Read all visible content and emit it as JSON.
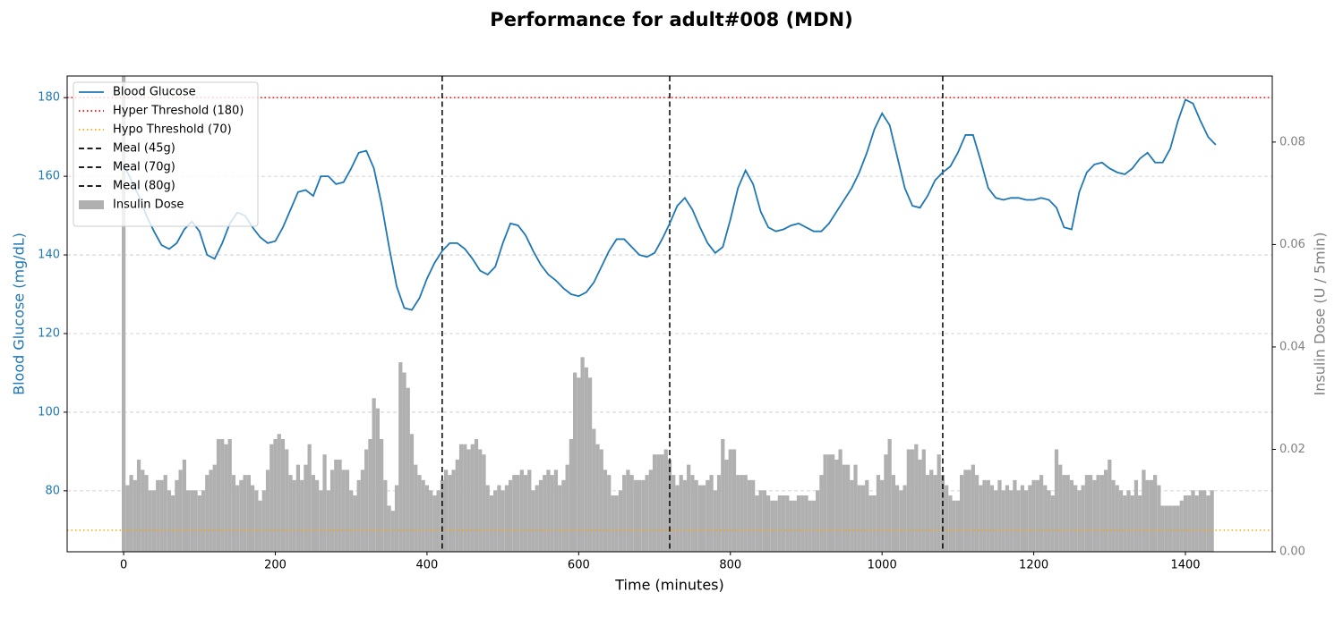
{
  "chart_data": {
    "type": "line",
    "title": "Performance for adult#008 (MDN)",
    "xlabel": "Time (minutes)",
    "ylabel": "Blood Glucose (mg/dL)",
    "y2label": "Insulin Dose (U / 5min)",
    "xlim": [
      -74.5,
      1514.5
    ],
    "ylim": [
      64.5,
      185.5
    ],
    "y2lim": [
      0,
      0.0929
    ],
    "xticks": [
      0,
      200,
      400,
      600,
      800,
      1000,
      1200,
      1400
    ],
    "yticks": [
      80,
      100,
      120,
      140,
      160,
      180
    ],
    "y2ticks": [
      {
        "value": 0,
        "label": "0.00"
      },
      0.02,
      0.04,
      0.06,
      0.08
    ],
    "grid": true,
    "legend": "upper left",
    "series": [
      {
        "name": "Blood Glucose",
        "type": "line",
        "color": "#1f77b4",
        "x": [
          0,
          10,
          20,
          30,
          40,
          50,
          60,
          70,
          80,
          90,
          100,
          110,
          120,
          130,
          140,
          150,
          160,
          170,
          180,
          190,
          200,
          210,
          220,
          230,
          240,
          250,
          260,
          270,
          280,
          290,
          300,
          310,
          320,
          330,
          340,
          350,
          360,
          370,
          380,
          390,
          400,
          410,
          420,
          430,
          440,
          450,
          460,
          470,
          480,
          490,
          500,
          510,
          520,
          530,
          540,
          550,
          560,
          570,
          580,
          590,
          600,
          610,
          620,
          630,
          640,
          650,
          660,
          670,
          680,
          690,
          700,
          710,
          720,
          730,
          740,
          750,
          760,
          770,
          780,
          790,
          800,
          810,
          820,
          830,
          840,
          850,
          860,
          870,
          880,
          890,
          900,
          910,
          920,
          930,
          940,
          950,
          960,
          970,
          980,
          990,
          1000,
          1010,
          1020,
          1030,
          1040,
          1050,
          1060,
          1070,
          1080,
          1090,
          1100,
          1110,
          1120,
          1130,
          1140,
          1150,
          1160,
          1170,
          1180,
          1190,
          1200,
          1210,
          1220,
          1230,
          1240,
          1250,
          1260,
          1270,
          1280,
          1290,
          1300,
          1310,
          1320,
          1330,
          1340,
          1350,
          1360,
          1370,
          1380,
          1390,
          1400,
          1410,
          1420,
          1430,
          1440
        ],
        "values": [
          163,
          159,
          155,
          150,
          146,
          142.5,
          141.5,
          143,
          146.5,
          148.5,
          146,
          140,
          139,
          143,
          148,
          150.8,
          150,
          147,
          144.5,
          143,
          143.5,
          147,
          151.5,
          156,
          156.5,
          155,
          160,
          160,
          158,
          158.5,
          162,
          166,
          166.5,
          162,
          153,
          142,
          132,
          126.5,
          126,
          129,
          134,
          138,
          141,
          143,
          143,
          141.5,
          139,
          136,
          135,
          137,
          143,
          148,
          147.5,
          145,
          141,
          137.5,
          135,
          133.5,
          131.5,
          130,
          129.5,
          130.5,
          133,
          137,
          141,
          144,
          144,
          142,
          140,
          139.5,
          140.5,
          144,
          148,
          152.5,
          154.5,
          151.5,
          147,
          143,
          140.5,
          142,
          149,
          157,
          161.5,
          158,
          151,
          147,
          146,
          146.5,
          147.5,
          148,
          147,
          146,
          146,
          148,
          151,
          154,
          157,
          161,
          166,
          172,
          176,
          173,
          165,
          157,
          152.5,
          152,
          155,
          159,
          161,
          162.5,
          166,
          170.5,
          170.5,
          164,
          157,
          154.5,
          154,
          154.5,
          154.5,
          154,
          154,
          154.5,
          154,
          152,
          147,
          146.5,
          156,
          161,
          163,
          163.5,
          162,
          161,
          160.5,
          162,
          164.5,
          166,
          163.5,
          163.5,
          167,
          174,
          179.5,
          178.5,
          174,
          170,
          168
        ]
      },
      {
        "name": "Insulin Dose",
        "type": "bar",
        "axis": "y2",
        "color": "#b0b0b0",
        "x": [
          0,
          5,
          10,
          15,
          20,
          25,
          30,
          35,
          40,
          45,
          50,
          55,
          60,
          65,
          70,
          75,
          80,
          85,
          90,
          95,
          100,
          105,
          110,
          115,
          120,
          125,
          130,
          135,
          140,
          145,
          150,
          155,
          160,
          165,
          170,
          175,
          180,
          185,
          190,
          195,
          200,
          205,
          210,
          215,
          220,
          225,
          230,
          235,
          240,
          245,
          250,
          255,
          260,
          265,
          270,
          275,
          280,
          285,
          290,
          295,
          300,
          305,
          310,
          315,
          320,
          325,
          330,
          335,
          340,
          345,
          350,
          355,
          360,
          365,
          370,
          375,
          380,
          385,
          390,
          395,
          400,
          405,
          410,
          415,
          420,
          425,
          430,
          435,
          440,
          445,
          450,
          455,
          460,
          465,
          470,
          475,
          480,
          485,
          490,
          495,
          500,
          505,
          510,
          515,
          520,
          525,
          530,
          535,
          540,
          545,
          550,
          555,
          560,
          565,
          570,
          575,
          580,
          585,
          590,
          595,
          600,
          605,
          610,
          615,
          620,
          625,
          630,
          635,
          640,
          645,
          650,
          655,
          660,
          665,
          670,
          675,
          680,
          685,
          690,
          695,
          700,
          705,
          710,
          715,
          720,
          725,
          730,
          735,
          740,
          745,
          750,
          755,
          760,
          765,
          770,
          775,
          780,
          785,
          790,
          795,
          800,
          805,
          810,
          815,
          820,
          825,
          830,
          835,
          840,
          845,
          850,
          855,
          860,
          865,
          870,
          875,
          880,
          885,
          890,
          895,
          900,
          905,
          910,
          915,
          920,
          925,
          930,
          935,
          940,
          945,
          950,
          955,
          960,
          965,
          970,
          975,
          980,
          985,
          990,
          995,
          1000,
          1005,
          1010,
          1015,
          1020,
          1025,
          1030,
          1035,
          1040,
          1045,
          1050,
          1055,
          1060,
          1065,
          1070,
          1075,
          1080,
          1085,
          1090,
          1095,
          1100,
          1105,
          1110,
          1115,
          1120,
          1125,
          1130,
          1135,
          1140,
          1145,
          1150,
          1155,
          1160,
          1165,
          1170,
          1175,
          1180,
          1185,
          1190,
          1195,
          1200,
          1205,
          1210,
          1215,
          1220,
          1225,
          1230,
          1235,
          1240,
          1245,
          1250,
          1255,
          1260,
          1265,
          1270,
          1275,
          1280,
          1285,
          1290,
          1295,
          1300,
          1305,
          1310,
          1315,
          1320,
          1325,
          1330,
          1335,
          1340,
          1345,
          1350,
          1355,
          1360,
          1365,
          1370,
          1375,
          1380,
          1385,
          1390,
          1395,
          1400,
          1405,
          1410,
          1415,
          1420,
          1425,
          1430,
          1435
        ],
        "values": [
          0.093,
          0.013,
          0.015,
          0.014,
          0.018,
          0.016,
          0.015,
          0.012,
          0.012,
          0.014,
          0.014,
          0.015,
          0.012,
          0.011,
          0.014,
          0.016,
          0.018,
          0.012,
          0.012,
          0.012,
          0.011,
          0.012,
          0.015,
          0.016,
          0.017,
          0.022,
          0.022,
          0.021,
          0.022,
          0.015,
          0.013,
          0.014,
          0.015,
          0.015,
          0.013,
          0.012,
          0.01,
          0.012,
          0.016,
          0.021,
          0.022,
          0.023,
          0.022,
          0.02,
          0.015,
          0.014,
          0.017,
          0.014,
          0.017,
          0.021,
          0.015,
          0.014,
          0.012,
          0.019,
          0.012,
          0.016,
          0.018,
          0.018,
          0.016,
          0.016,
          0.012,
          0.011,
          0.014,
          0.016,
          0.02,
          0.022,
          0.03,
          0.028,
          0.022,
          0.014,
          0.009,
          0.008,
          0.013,
          0.037,
          0.035,
          0.032,
          0.023,
          0.017,
          0.015,
          0.014,
          0.013,
          0.012,
          0.011,
          0.012,
          0.014,
          0.016,
          0.015,
          0.016,
          0.018,
          0.021,
          0.021,
          0.02,
          0.021,
          0.022,
          0.02,
          0.019,
          0.013,
          0.011,
          0.012,
          0.013,
          0.012,
          0.013,
          0.014,
          0.015,
          0.015,
          0.016,
          0.015,
          0.016,
          0.012,
          0.013,
          0.014,
          0.015,
          0.016,
          0.015,
          0.016,
          0.013,
          0.014,
          0.017,
          0.022,
          0.035,
          0.034,
          0.038,
          0.036,
          0.034,
          0.024,
          0.021,
          0.02,
          0.016,
          0.015,
          0.011,
          0.011,
          0.012,
          0.015,
          0.016,
          0.015,
          0.014,
          0.014,
          0.014,
          0.015,
          0.016,
          0.019,
          0.019,
          0.019,
          0.02,
          0.018,
          0.015,
          0.013,
          0.015,
          0.014,
          0.017,
          0.015,
          0.014,
          0.013,
          0.013,
          0.014,
          0.015,
          0.012,
          0.015,
          0.022,
          0.018,
          0.02,
          0.02,
          0.015,
          0.015,
          0.015,
          0.014,
          0.014,
          0.011,
          0.012,
          0.012,
          0.011,
          0.01,
          0.01,
          0.011,
          0.011,
          0.011,
          0.01,
          0.01,
          0.011,
          0.011,
          0.011,
          0.01,
          0.01,
          0.012,
          0.015,
          0.019,
          0.019,
          0.019,
          0.018,
          0.02,
          0.017,
          0.017,
          0.014,
          0.017,
          0.013,
          0.013,
          0.014,
          0.011,
          0.011,
          0.015,
          0.014,
          0.019,
          0.022,
          0.015,
          0.013,
          0.012,
          0.013,
          0.02,
          0.02,
          0.021,
          0.018,
          0.02,
          0.015,
          0.016,
          0.015,
          0.019,
          0.015,
          0.013,
          0.011,
          0.01,
          0.01,
          0.015,
          0.016,
          0.016,
          0.017,
          0.015,
          0.013,
          0.014,
          0.014,
          0.013,
          0.012,
          0.014,
          0.012,
          0.013,
          0.012,
          0.014,
          0.012,
          0.013,
          0.012,
          0.013,
          0.014,
          0.014,
          0.015,
          0.013,
          0.012,
          0.011,
          0.02,
          0.017,
          0.015,
          0.015,
          0.014,
          0.013,
          0.012,
          0.013,
          0.015,
          0.015,
          0.014,
          0.015,
          0.015,
          0.016,
          0.018,
          0.014,
          0.013,
          0.012,
          0.011,
          0.012,
          0.011,
          0.014,
          0.011,
          0.016,
          0.014,
          0.014,
          0.015,
          0.013,
          0.009,
          0.009,
          0.009,
          0.009,
          0.009,
          0.01,
          0.011,
          0.011,
          0.012,
          0.011,
          0.012,
          0.012,
          0.011,
          0.012
        ]
      }
    ],
    "hlines": [
      {
        "name": "Hyper Threshold (180)",
        "value": 180,
        "color": "#ff0000",
        "linestyle": "dotted"
      },
      {
        "name": "Hypo Threshold (70)",
        "value": 70,
        "color": "#ffa500",
        "linestyle": "dotted"
      }
    ],
    "vlines": [
      {
        "name": "Meal (45g)",
        "value": 420,
        "color": "#000000",
        "linestyle": "dashed"
      },
      {
        "name": "Meal (70g)",
        "value": 720,
        "color": "#000000",
        "linestyle": "dashed"
      },
      {
        "name": "Meal (80g)",
        "value": 1080,
        "color": "#000000",
        "linestyle": "dashed"
      }
    ]
  }
}
